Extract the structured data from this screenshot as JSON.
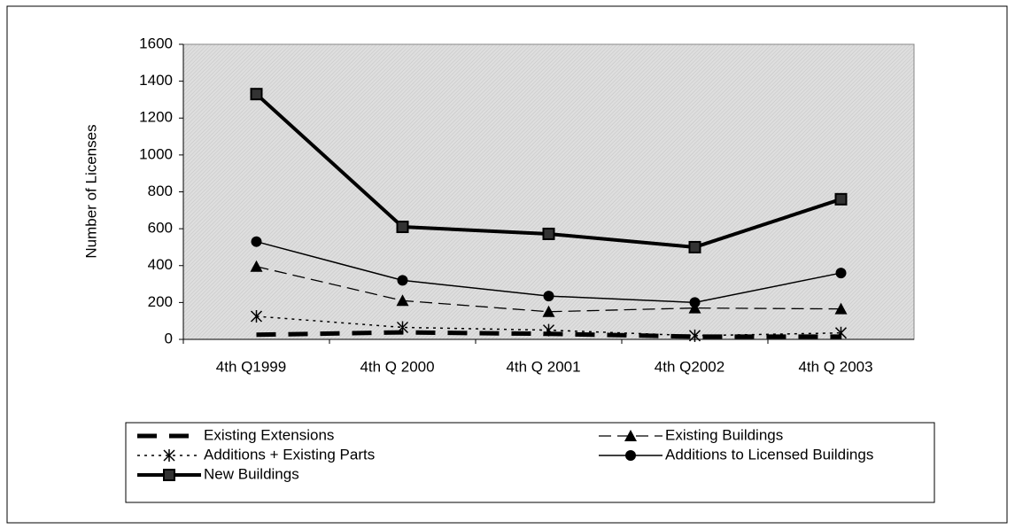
{
  "chart_data": {
    "type": "line",
    "y_label": "Number of Licenses",
    "categories": [
      "4th Q1999",
      "4th Q 2000",
      "4th Q  2001",
      "4th Q2002",
      "4th Q  2003"
    ],
    "ylim": [
      0,
      1600
    ],
    "yticks": [
      0,
      200,
      400,
      600,
      800,
      1000,
      1200,
      1400,
      1600
    ],
    "legend": "bottom",
    "series": [
      {
        "name": "Existing Extensions",
        "color": "#000000",
        "width": 5,
        "dash": "22,14",
        "marker": "none",
        "values": [
          25,
          38,
          30,
          15,
          15
        ]
      },
      {
        "name": "Existing Buildings",
        "color": "#000000",
        "width": 1.3,
        "dash": "14,7",
        "marker": "triangle",
        "values": [
          395,
          210,
          150,
          170,
          165
        ]
      },
      {
        "name": "Additions + Existing  Parts",
        "color": "#000000",
        "width": 1.5,
        "dash": "3,5",
        "marker": "asterisk",
        "values": [
          125,
          65,
          50,
          20,
          35
        ]
      },
      {
        "name": "Additions to Licensed Buildings",
        "color": "#000000",
        "width": 1.5,
        "dash": "none",
        "marker": "circle",
        "values": [
          530,
          320,
          235,
          200,
          360
        ]
      },
      {
        "name": "New  Buildings",
        "color": "#000000",
        "width": 4,
        "dash": "none",
        "marker": "square",
        "values": [
          1330,
          610,
          572,
          500,
          760
        ]
      }
    ]
  }
}
